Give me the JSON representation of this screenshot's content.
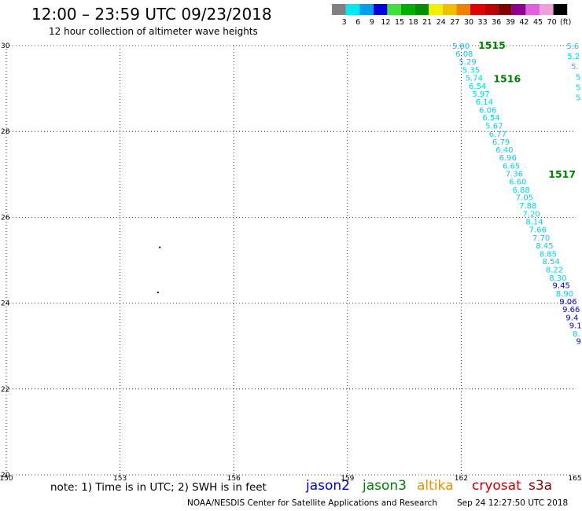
{
  "header": {
    "title": "12:00 – 23:59 UTC 09/23/2018",
    "subtitle": "12 hour collection of altimeter wave heights"
  },
  "legend": {
    "colors": [
      "#808080",
      "#00e8f0",
      "#00a0f0",
      "#0000e0",
      "#40e040",
      "#00b000",
      "#009000",
      "#f0f000",
      "#f0c000",
      "#f08000",
      "#e00000",
      "#c00000",
      "#800000",
      "#900090",
      "#e060e0",
      "#f0a0d8",
      "#000000"
    ],
    "labels": [
      "3",
      "6",
      "9",
      "12",
      "15",
      "18",
      "21",
      "24",
      "27",
      "30",
      "33",
      "36",
      "39",
      "42",
      "45",
      "70",
      "(ft)"
    ]
  },
  "map": {
    "lon_ticks": [
      "150",
      "153",
      "156",
      "159",
      "162",
      "165"
    ],
    "lat_ticks": [
      "30",
      "28",
      "26",
      "24",
      "22",
      "20"
    ],
    "lon_range": [
      150,
      165
    ],
    "lat_range": [
      20,
      30
    ],
    "land_points": [
      {
        "lon": 154.05,
        "lat": 25.3
      },
      {
        "lon": 154.0,
        "lat": 24.25
      }
    ],
    "track_labels": [
      {
        "text": "1515",
        "lon": 162.45,
        "lat": 30.0,
        "color": "#008000"
      },
      {
        "text": "1516",
        "lon": 162.85,
        "lat": 29.22,
        "color": "#008000"
      },
      {
        "text": "1517",
        "lon": 164.3,
        "lat": 27.0,
        "color": "#008000"
      }
    ],
    "track_main": [
      {
        "text": "5.00",
        "lon": 161.76,
        "lat": 30.0,
        "color": "#00d0f0"
      },
      {
        "text": "6.08",
        "lon": 161.85,
        "lat": 29.82,
        "color": "#00d0f0"
      },
      {
        "text": "5.29",
        "lon": 161.94,
        "lat": 29.63,
        "color": "#00d0f0"
      },
      {
        "text": "5.35",
        "lon": 162.03,
        "lat": 29.44,
        "color": "#00d0f0"
      },
      {
        "text": "5.74",
        "lon": 162.11,
        "lat": 29.26,
        "color": "#00d0f0"
      },
      {
        "text": "6.54",
        "lon": 162.2,
        "lat": 29.07,
        "color": "#00d0f0"
      },
      {
        "text": "5.97",
        "lon": 162.29,
        "lat": 28.88,
        "color": "#00d0f0"
      },
      {
        "text": "6.14",
        "lon": 162.38,
        "lat": 28.7,
        "color": "#00d0f0"
      },
      {
        "text": "6.06",
        "lon": 162.47,
        "lat": 28.51,
        "color": "#00d0f0"
      },
      {
        "text": "6.54",
        "lon": 162.56,
        "lat": 28.33,
        "color": "#00d0f0"
      },
      {
        "text": "5.67",
        "lon": 162.64,
        "lat": 28.14,
        "color": "#00d0f0"
      },
      {
        "text": "6.77",
        "lon": 162.73,
        "lat": 27.95,
        "color": "#00d0f0"
      },
      {
        "text": "6.79",
        "lon": 162.82,
        "lat": 27.77,
        "color": "#00d0f0"
      },
      {
        "text": "6.40",
        "lon": 162.91,
        "lat": 27.58,
        "color": "#00d0f0"
      },
      {
        "text": "6.96",
        "lon": 163.0,
        "lat": 27.4,
        "color": "#00d0f0"
      },
      {
        "text": "6.65",
        "lon": 163.09,
        "lat": 27.21,
        "color": "#00d0f0"
      },
      {
        "text": "7.36",
        "lon": 163.17,
        "lat": 27.02,
        "color": "#00d0f0"
      },
      {
        "text": "6.60",
        "lon": 163.26,
        "lat": 26.84,
        "color": "#00d0f0"
      },
      {
        "text": "6.88",
        "lon": 163.35,
        "lat": 26.65,
        "color": "#00d0f0"
      },
      {
        "text": "7.05",
        "lon": 163.44,
        "lat": 26.47,
        "color": "#00d0f0"
      },
      {
        "text": "7.88",
        "lon": 163.53,
        "lat": 26.28,
        "color": "#00d0f0"
      },
      {
        "text": "7.20",
        "lon": 163.62,
        "lat": 26.09,
        "color": "#00d0f0"
      },
      {
        "text": "8.14",
        "lon": 163.7,
        "lat": 25.91,
        "color": "#00d0f0"
      },
      {
        "text": "7.66",
        "lon": 163.79,
        "lat": 25.72,
        "color": "#00d0f0"
      },
      {
        "text": "7.70",
        "lon": 163.88,
        "lat": 25.53,
        "color": "#00d0f0"
      },
      {
        "text": "8.45",
        "lon": 163.97,
        "lat": 25.35,
        "color": "#00d0f0"
      },
      {
        "text": "8.85",
        "lon": 164.06,
        "lat": 25.16,
        "color": "#00d0f0"
      },
      {
        "text": "8.54",
        "lon": 164.14,
        "lat": 24.98,
        "color": "#00d0f0"
      },
      {
        "text": "8.22",
        "lon": 164.23,
        "lat": 24.79,
        "color": "#00d0f0"
      },
      {
        "text": "8.30",
        "lon": 164.32,
        "lat": 24.6,
        "color": "#00d0f0"
      },
      {
        "text": "9.45",
        "lon": 164.41,
        "lat": 24.42,
        "color": "#0000c0"
      },
      {
        "text": "8.90",
        "lon": 164.5,
        "lat": 24.23,
        "color": "#00d0f0"
      },
      {
        "text": "9.06",
        "lon": 164.59,
        "lat": 24.05,
        "color": "#0000c0"
      },
      {
        "text": "9.66",
        "lon": 164.67,
        "lat": 23.86,
        "color": "#0000c0"
      },
      {
        "text": "9.4",
        "lon": 164.76,
        "lat": 23.67,
        "color": "#0000c0"
      },
      {
        "text": "9.1",
        "lon": 164.85,
        "lat": 23.49,
        "color": "#0000c0"
      },
      {
        "text": "8.",
        "lon": 164.94,
        "lat": 23.3,
        "color": "#00d0f0"
      },
      {
        "text": "9",
        "lon": 165.03,
        "lat": 23.12,
        "color": "#0000c0"
      }
    ],
    "track_right": [
      {
        "text": "5.6",
        "lon": 164.78,
        "lat": 30.0,
        "color": "#00d0f0"
      },
      {
        "text": "5.2",
        "lon": 164.8,
        "lat": 29.76,
        "color": "#00d0f0"
      },
      {
        "text": "5.",
        "lon": 164.9,
        "lat": 29.52,
        "color": "#00d0f0"
      },
      {
        "text": "5",
        "lon": 165.02,
        "lat": 29.28,
        "color": "#00d0f0"
      },
      {
        "text": "5",
        "lon": 165.02,
        "lat": 29.04,
        "color": "#00d0f0"
      },
      {
        "text": "5",
        "lon": 165.02,
        "lat": 28.8,
        "color": "#00d0f0"
      }
    ]
  },
  "footer": {
    "note": "note: 1) Time is in UTC; 2) SWH is in feet",
    "satellites": [
      {
        "name": "jason2",
        "color": "#0000d0"
      },
      {
        "name": "jason3",
        "color": "#008000"
      },
      {
        "name": "altika",
        "color": "#f09000"
      },
      {
        "name": "cryosat",
        "color": "#d00000"
      },
      {
        "name": "s3a",
        "color": "#900000"
      }
    ],
    "credit": "NOAA/NESDIS Center for Satellite Applications and Research",
    "timestamp": "Sep 24 12:27:50 UTC 2018"
  }
}
